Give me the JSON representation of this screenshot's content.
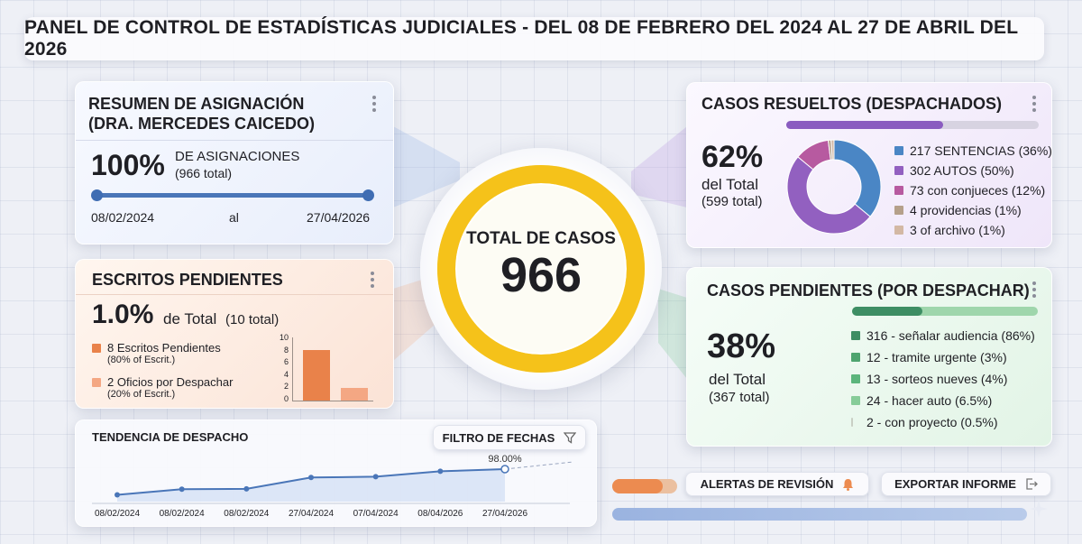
{
  "header": {
    "title": "PANEL DE CONTROL DE ESTADÍSTICAS JUDICIALES - DEL 08 DE FEBRERO DEL 2024 AL 27 DE ABRIL DEL 2026"
  },
  "asignacion": {
    "title_line1": "RESUMEN DE ASIGNACIÓN",
    "title_line2": "(DRA. MERCEDES CAICEDO)",
    "percent": "100%",
    "label": "DE ASIGNACIONES",
    "total": "(966 total)",
    "progress": 1.0,
    "start_date": "08/02/2024",
    "connector": "al",
    "end_date": "27/04/2026"
  },
  "escritos": {
    "title": "ESCRITOS PENDIENTES",
    "percent": "1.0%",
    "label": "de Total",
    "total": "(10 total)",
    "items": [
      {
        "label": "8 Escritos Pendientes",
        "sub": "(80% of Escrit.)",
        "color": "#e9824a",
        "value": 8
      },
      {
        "label": "2 Oficios por Despachar",
        "sub": "(20% of Escrit.)",
        "color": "#f4a783",
        "value": 2
      }
    ],
    "y_ticks": [
      "10",
      "8",
      "6",
      "4",
      "2",
      "0"
    ]
  },
  "center": {
    "label": "TOTAL DE CASOS",
    "value": "966",
    "ring_color": "#f5c21a"
  },
  "resueltos": {
    "title": "CASOS RESUELTOS (DESPACHADOS)",
    "percent": "62%",
    "label": "del Total",
    "total": "(599 total)",
    "progress": 0.62,
    "legend": [
      {
        "label": "217 SENTENCIAS (36%)",
        "value": 36,
        "color": "#4a86c5"
      },
      {
        "label": "302 AUTOS (50%)",
        "value": 50,
        "color": "#9260c0"
      },
      {
        "label": "73 con conjueces (12%)",
        "value": 12,
        "color": "#b75aa0"
      },
      {
        "label": "4 providencias (1%)",
        "value": 1,
        "color": "#b5a08a"
      },
      {
        "label": "3 of archivo (1%)",
        "value": 1,
        "color": "#d3b8a4"
      }
    ]
  },
  "pendientes": {
    "title": "CASOS PENDIENTES (POR DESPACHAR)",
    "percent": "38%",
    "label": "del Total",
    "total": "(367 total)",
    "progress": 0.38,
    "legend": [
      {
        "label": "316 - señalar audiencia (86%)",
        "color": "#3f8e63"
      },
      {
        "label": "12 - tramite urgente (3%)",
        "color": "#4ea46f"
      },
      {
        "label": "13 - sorteos nueves (4%)",
        "color": "#5cb57c"
      },
      {
        "label": "24 - hacer auto (6.5%)",
        "color": "#86cc98"
      },
      {
        "label": "2 - con proyecto (0.5%)",
        "color": "#c9cfc4"
      }
    ]
  },
  "tendencia": {
    "title": "TENDENCIA DE DESPACHO",
    "filter_label": "FILTRO DE FECHAS",
    "last_value_label": "98.00%"
  },
  "chart_data": {
    "type": "line",
    "title": "TENDENCIA DE DESPACHO",
    "x": [
      "08/02/2024",
      "08/02/2024",
      "08/02/2024",
      "27/04/2024",
      "07/04/2024",
      "08/04/2026",
      "27/04/2026"
    ],
    "series": [
      {
        "values": [
          88.5,
          90.6,
          90.7,
          94.9,
          95.2,
          97.2,
          98.0
        ]
      }
    ],
    "annotations": [
      "98.00%"
    ],
    "grid": false
  },
  "actions": {
    "alerts_label": "ALERTAS DE REVISIÓN",
    "export_label": "EXPORTAR INFORME"
  }
}
